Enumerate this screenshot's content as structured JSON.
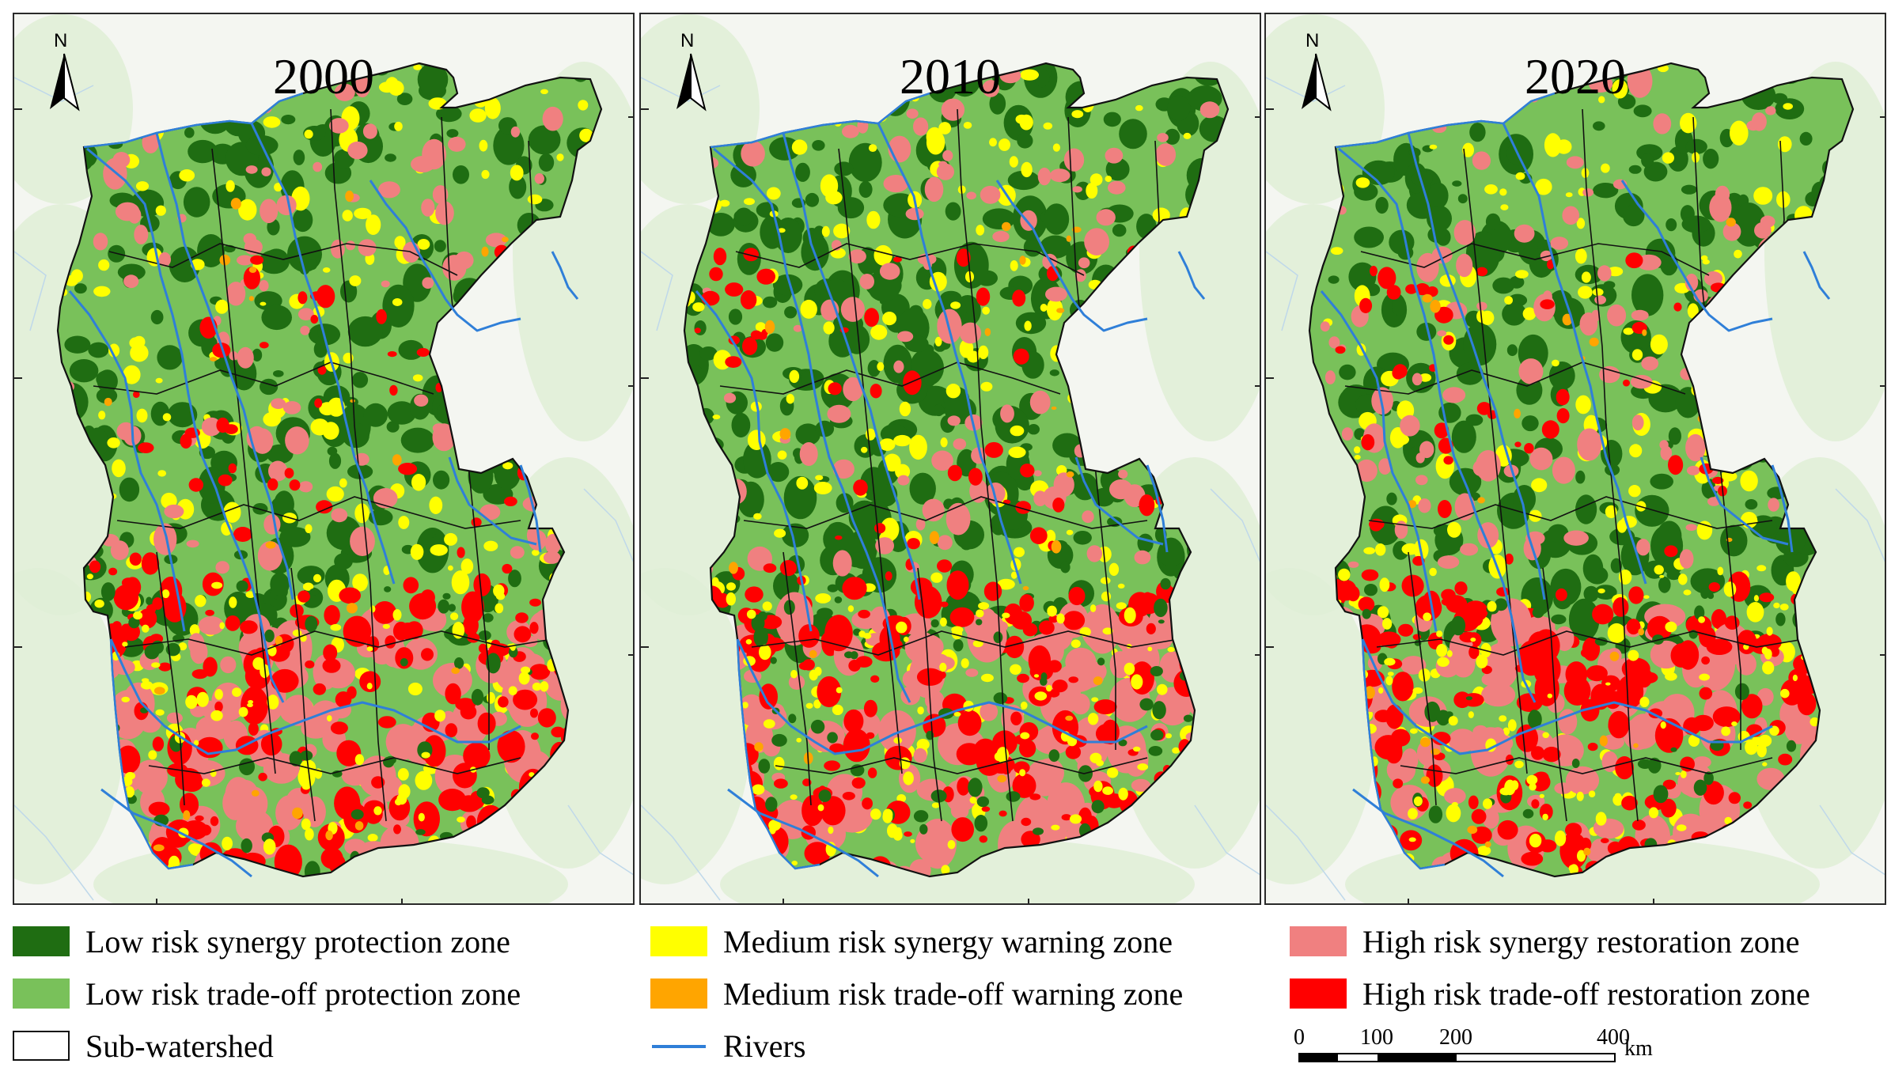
{
  "panels": [
    {
      "year": "2000",
      "seed": 11
    },
    {
      "year": "2010",
      "seed": 37
    },
    {
      "year": "2020",
      "seed": 73
    }
  ],
  "north_label": "N",
  "legend": {
    "items": [
      {
        "label": "Low risk synergy protection zone",
        "color": "#1f6d12"
      },
      {
        "label": "Low risk trade-off protection zone",
        "color": "#79c15a"
      },
      {
        "label": "Sub-watershed",
        "color": "#ffffff"
      },
      {
        "label": "Medium risk synergy warning zone",
        "color": "#ffff00"
      },
      {
        "label": "Medium risk trade-off warning zone",
        "color": "#ffa500"
      },
      {
        "label": "Rivers",
        "color": "#2f7fd8"
      },
      {
        "label": "High risk synergy restoration zone",
        "color": "#f08080"
      },
      {
        "label": "High risk trade-off restoration zone",
        "color": "#ff0000"
      }
    ]
  },
  "scale": {
    "ticks": [
      "0",
      "100",
      "200",
      "400"
    ],
    "unit": "km"
  },
  "colors": {
    "background": "#f4f6f1",
    "terrain": "#dfeed6",
    "outline": "#111111",
    "river": "#2f7fd8",
    "low_synergy": "#1f6d12",
    "low_tradeoff": "#79c15a",
    "medium_synergy": "#ffff00",
    "medium_tradeoff": "#ffa500",
    "high_synergy": "#f08080",
    "high_tradeoff": "#ff0000"
  }
}
